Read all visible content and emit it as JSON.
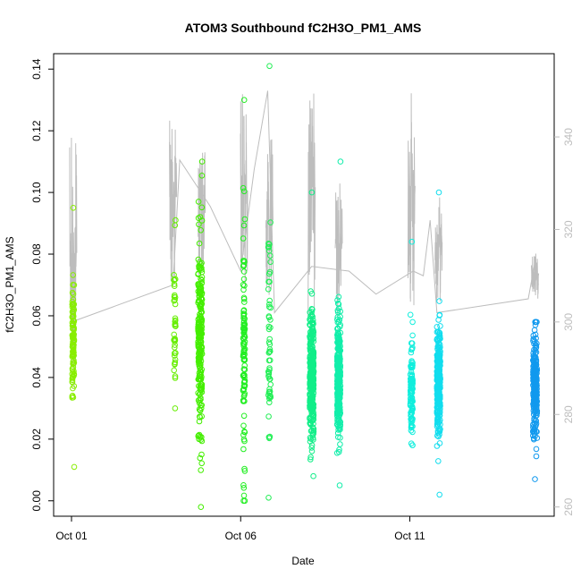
{
  "chart_data": {
    "type": "scatter",
    "title": "ATOM3 Southbound fC2H3O_PM1_AMS",
    "xlabel": "Date",
    "ylabel": "fC2H3O_PM1_AMS",
    "x_ticks": [
      "Oct 01",
      "Oct 06",
      "Oct 11"
    ],
    "x_range_days": [
      0.0,
      14.0
    ],
    "ylim": [
      -0.005,
      0.145
    ],
    "y_ticks": [
      0.0,
      0.02,
      0.04,
      0.06,
      0.08,
      0.1,
      0.12,
      0.14
    ],
    "y_tick_labels": [
      "0.00",
      "0.02",
      "0.04",
      "0.06",
      "0.08",
      "0.10",
      "0.12",
      "0.14"
    ],
    "y2lim": [
      258,
      358
    ],
    "y2_ticks": [
      260,
      280,
      300,
      320,
      340
    ],
    "y2_tick_labels": [
      "260",
      "280",
      "300",
      "320",
      "340"
    ],
    "grid": false,
    "point_clusters": [
      {
        "day": 0.05,
        "spread": 0.06,
        "mean": 0.052,
        "sd": 0.01,
        "n": 110,
        "min": 0.011,
        "max": 0.095,
        "color": "#88ee00"
      },
      {
        "day": 3.05,
        "spread": 0.05,
        "mean": 0.055,
        "sd": 0.013,
        "n": 40,
        "min": 0.03,
        "max": 0.091,
        "color": "#66ee00"
      },
      {
        "day": 3.8,
        "spread": 0.12,
        "mean": 0.052,
        "sd": 0.016,
        "n": 240,
        "min": -0.002,
        "max": 0.11,
        "color": "#44ee00"
      },
      {
        "day": 5.1,
        "spread": 0.06,
        "mean": 0.048,
        "sd": 0.018,
        "n": 110,
        "min": 0.0,
        "max": 0.13,
        "color": "#22ee22"
      },
      {
        "day": 5.85,
        "spread": 0.07,
        "mean": 0.045,
        "sd": 0.02,
        "n": 60,
        "min": 0.001,
        "max": 0.141,
        "color": "#22ee55"
      },
      {
        "day": 7.1,
        "spread": 0.12,
        "mean": 0.04,
        "sd": 0.01,
        "n": 320,
        "min": 0.008,
        "max": 0.1,
        "color": "#11ee88"
      },
      {
        "day": 7.9,
        "spread": 0.1,
        "mean": 0.04,
        "sd": 0.01,
        "n": 280,
        "min": 0.005,
        "max": 0.11,
        "color": "#11eeaa"
      },
      {
        "day": 10.05,
        "spread": 0.07,
        "mean": 0.038,
        "sd": 0.009,
        "n": 120,
        "min": 0.018,
        "max": 0.084,
        "color": "#11eedd"
      },
      {
        "day": 10.85,
        "spread": 0.1,
        "mean": 0.038,
        "sd": 0.009,
        "n": 260,
        "min": 0.002,
        "max": 0.1,
        "color": "#11ddee"
      },
      {
        "day": 13.7,
        "spread": 0.12,
        "mean": 0.037,
        "sd": 0.008,
        "n": 240,
        "min": 0.007,
        "max": 0.058,
        "color": "#1199ee"
      }
    ],
    "gray_line": {
      "color": "#bdbdbd",
      "vertices": [
        [
          0.0,
          300
        ],
        [
          3.0,
          308
        ],
        [
          3.2,
          335
        ],
        [
          4.1,
          325
        ],
        [
          5.0,
          311
        ],
        [
          5.4,
          333
        ],
        [
          5.8,
          350
        ],
        [
          6.0,
          302
        ],
        [
          7.1,
          312
        ],
        [
          8.2,
          311
        ],
        [
          9.0,
          306
        ],
        [
          10.1,
          311
        ],
        [
          10.4,
          310
        ],
        [
          10.6,
          322
        ],
        [
          10.8,
          302
        ],
        [
          13.5,
          305
        ],
        [
          13.7,
          313
        ],
        [
          13.8,
          308
        ]
      ],
      "spikes": [
        {
          "day": 0.05,
          "low": 283,
          "high": 341
        },
        {
          "day": 3.0,
          "low": 305,
          "high": 345
        },
        {
          "day": 3.85,
          "low": 310,
          "high": 337
        },
        {
          "day": 5.1,
          "low": 302,
          "high": 350
        },
        {
          "day": 5.85,
          "low": 300,
          "high": 340
        },
        {
          "day": 7.1,
          "low": 300,
          "high": 353
        },
        {
          "day": 7.9,
          "low": 301,
          "high": 330
        },
        {
          "day": 10.05,
          "low": 303,
          "high": 351
        },
        {
          "day": 10.85,
          "low": 304,
          "high": 328
        },
        {
          "day": 13.7,
          "low": 305,
          "high": 315
        }
      ]
    }
  }
}
